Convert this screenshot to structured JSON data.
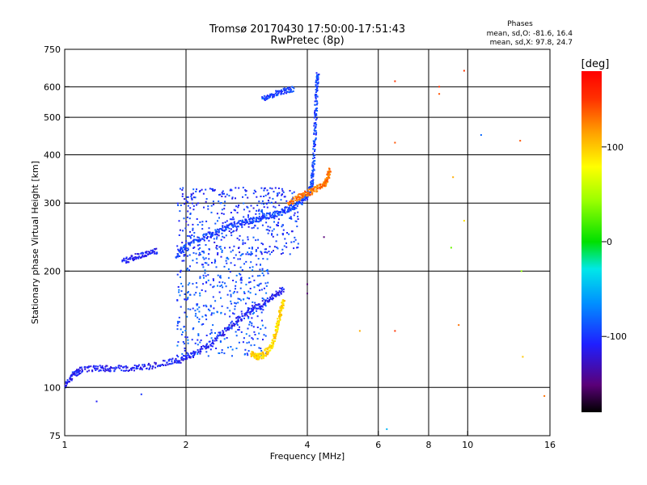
{
  "header": {
    "title": "Tromsø 20170430 17:50:00-17:51:43",
    "subtitle": "RwPretec (8p)",
    "phases_label": "Phases",
    "phases_o": "mean, sd,O: -81.6, 16.4",
    "phases_x": "mean, sd,X:  97.8, 24.7"
  },
  "colorbar": {
    "unit": "[deg]",
    "ticks": [
      {
        "value": 100,
        "label": "100"
      },
      {
        "value": 0,
        "label": "0"
      },
      {
        "value": -100,
        "label": "-100"
      }
    ],
    "range": [
      -180,
      180
    ]
  },
  "chart_data": {
    "type": "scatter",
    "title": "Tromsø 20170430 17:50:00-17:51:43",
    "subtitle": "RwPretec (8p)",
    "xlabel": "Frequency [MHz]",
    "ylabel": "Stationary phase Virtual Height [km]",
    "xscale": "log",
    "yscale": "log",
    "xlim": [
      1,
      16
    ],
    "ylim": [
      75,
      750
    ],
    "xticks": [
      {
        "value": 1,
        "label": "1"
      },
      {
        "value": 2,
        "label": "2"
      },
      {
        "value": 4,
        "label": "4"
      },
      {
        "value": 6,
        "label": "6"
      },
      {
        "value": 8,
        "label": "8"
      },
      {
        "value": 10,
        "label": "10"
      },
      {
        "value": 16,
        "label": "16"
      }
    ],
    "yticks": [
      {
        "value": 75,
        "label": "75"
      },
      {
        "value": 100,
        "label": "100"
      },
      {
        "value": 200,
        "label": "200"
      },
      {
        "value": 300,
        "label": "300"
      },
      {
        "value": 400,
        "label": "400"
      },
      {
        "value": 500,
        "label": "500"
      },
      {
        "value": 600,
        "label": "600"
      },
      {
        "value": 750,
        "label": "750"
      }
    ],
    "grid_x": [
      2,
      4,
      6,
      8,
      10
    ],
    "grid_y": [
      100,
      200,
      300,
      400,
      500,
      600
    ],
    "grid": true,
    "color_scale": "phase (deg), rainbow -180..180",
    "traces": [
      {
        "name": "O-mode lower trace",
        "phase": -110,
        "points": [
          [
            1.0,
            100
          ],
          [
            1.05,
            108
          ],
          [
            1.1,
            111
          ],
          [
            1.2,
            112
          ],
          [
            1.3,
            112
          ],
          [
            1.45,
            112
          ],
          [
            1.6,
            113
          ],
          [
            1.8,
            116
          ],
          [
            1.95,
            118
          ],
          [
            2.1,
            122
          ],
          [
            2.3,
            130
          ],
          [
            2.5,
            140
          ],
          [
            2.7,
            150
          ],
          [
            2.9,
            158
          ],
          [
            3.1,
            165
          ],
          [
            3.3,
            172
          ],
          [
            3.5,
            180
          ]
        ]
      },
      {
        "name": "O-mode F trace",
        "phase": -95,
        "points": [
          [
            1.9,
            220
          ],
          [
            2.0,
            232
          ],
          [
            2.2,
            245
          ],
          [
            2.4,
            255
          ],
          [
            2.6,
            262
          ],
          [
            2.8,
            268
          ],
          [
            3.0,
            272
          ],
          [
            3.2,
            278
          ],
          [
            3.4,
            283
          ],
          [
            3.6,
            290
          ],
          [
            3.8,
            298
          ],
          [
            4.0,
            310
          ],
          [
            4.1,
            335
          ],
          [
            4.15,
            380
          ],
          [
            4.18,
            450
          ],
          [
            4.2,
            520
          ],
          [
            4.22,
            600
          ],
          [
            4.25,
            650
          ]
        ]
      },
      {
        "name": "X-mode F trace",
        "phase": 130,
        "points": [
          [
            3.6,
            300
          ],
          [
            3.8,
            310
          ],
          [
            4.0,
            318
          ],
          [
            4.2,
            325
          ],
          [
            4.4,
            335
          ],
          [
            4.5,
            350
          ],
          [
            4.55,
            365
          ]
        ]
      },
      {
        "name": "X-mode E trace",
        "phase": 95,
        "points": [
          [
            2.9,
            122
          ],
          [
            3.0,
            120
          ],
          [
            3.1,
            121
          ],
          [
            3.2,
            125
          ],
          [
            3.3,
            132
          ],
          [
            3.35,
            140
          ],
          [
            3.4,
            150
          ],
          [
            3.45,
            160
          ],
          [
            3.5,
            168
          ]
        ]
      },
      {
        "name": "upper oblique trace",
        "phase": -95,
        "points": [
          [
            3.1,
            560
          ],
          [
            3.3,
            575
          ],
          [
            3.5,
            585
          ],
          [
            3.7,
            592
          ]
        ]
      },
      {
        "name": "low oblique trace",
        "phase": -110,
        "points": [
          [
            1.4,
            212
          ],
          [
            1.5,
            218
          ],
          [
            1.6,
            222
          ],
          [
            1.7,
            226
          ]
        ]
      }
    ],
    "clouds": [
      {
        "name": "E/F1 cloud",
        "phase": -90,
        "f_range": [
          1.9,
          3.2
        ],
        "h_range": [
          120,
          230
        ]
      },
      {
        "name": "F scatter",
        "phase": -100,
        "f_range": [
          1.9,
          3.8
        ],
        "h_range": [
          220,
          330
        ]
      }
    ],
    "isolated_points": [
      {
        "f": 1.2,
        "h": 92,
        "phase": -110
      },
      {
        "f": 1.55,
        "h": 96,
        "phase": -100
      },
      {
        "f": 6.3,
        "h": 78,
        "phase": -50
      },
      {
        "f": 6.6,
        "h": 620,
        "phase": 150
      },
      {
        "f": 6.6,
        "h": 430,
        "phase": 140
      },
      {
        "f": 6.6,
        "h": 140,
        "phase": 150
      },
      {
        "f": 8.5,
        "h": 600,
        "phase": 150
      },
      {
        "f": 8.5,
        "h": 575,
        "phase": 140
      },
      {
        "f": 9.2,
        "h": 350,
        "phase": 110
      },
      {
        "f": 9.5,
        "h": 145,
        "phase": 130
      },
      {
        "f": 9.8,
        "h": 270,
        "phase": 90
      },
      {
        "f": 10.8,
        "h": 450,
        "phase": -80
      },
      {
        "f": 13.5,
        "h": 435,
        "phase": 140
      },
      {
        "f": 13.6,
        "h": 200,
        "phase": 40
      },
      {
        "f": 13.7,
        "h": 120,
        "phase": 100
      },
      {
        "f": 15.5,
        "h": 95,
        "phase": 130
      },
      {
        "f": 5.4,
        "h": 140,
        "phase": 110
      },
      {
        "f": 4.4,
        "h": 245,
        "phase": -150
      },
      {
        "f": 4.0,
        "h": 185,
        "phase": -150
      },
      {
        "f": 4.0,
        "h": 175,
        "phase": -150
      },
      {
        "f": 9.1,
        "h": 230,
        "phase": 30
      },
      {
        "f": 9.8,
        "h": 660,
        "phase": 150
      }
    ]
  }
}
